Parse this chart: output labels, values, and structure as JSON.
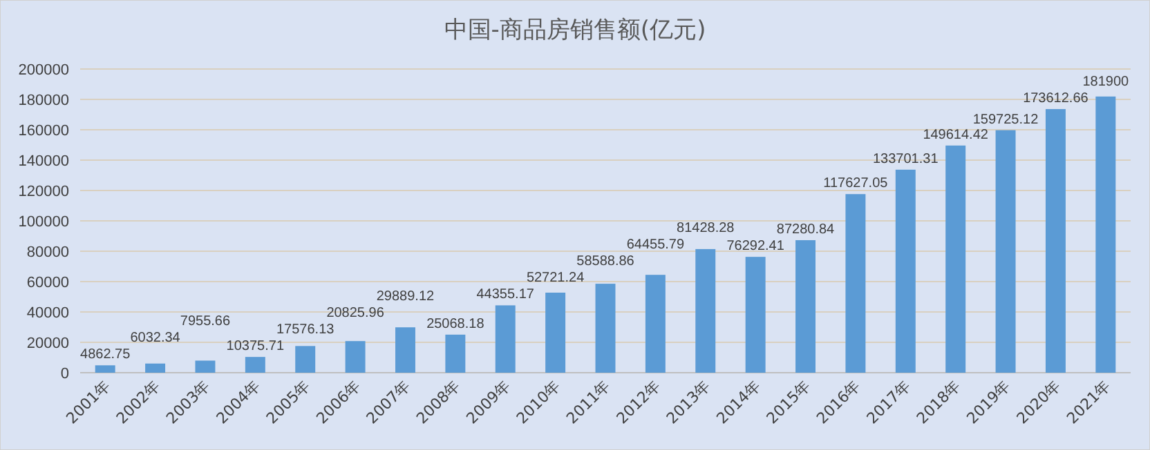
{
  "chart_data": {
    "type": "bar",
    "title": "中国-商品房销售额(亿元)",
    "categories": [
      "2001年",
      "2002年",
      "2003年",
      "2004年",
      "2005年",
      "2006年",
      "2007年",
      "2008年",
      "2009年",
      "2010年",
      "2011年",
      "2012年",
      "2013年",
      "2014年",
      "2015年",
      "2016年",
      "2017年",
      "2018年",
      "2019年",
      "2020年",
      "2021年"
    ],
    "values": [
      4862.75,
      6032.34,
      7955.66,
      10375.71,
      17576.13,
      20825.96,
      29889.12,
      25068.18,
      44355.17,
      52721.24,
      58588.86,
      64455.79,
      81428.28,
      76292.41,
      87280.84,
      117627.05,
      133701.31,
      149614.42,
      159725.12,
      173612.66,
      181900
    ],
    "color": "#5b9bd5",
    "ylim": [
      0,
      200000
    ],
    "yticks": [
      0,
      20000,
      40000,
      60000,
      80000,
      100000,
      120000,
      140000,
      160000,
      180000,
      200000
    ],
    "grid": "y",
    "data_labels": true
  }
}
